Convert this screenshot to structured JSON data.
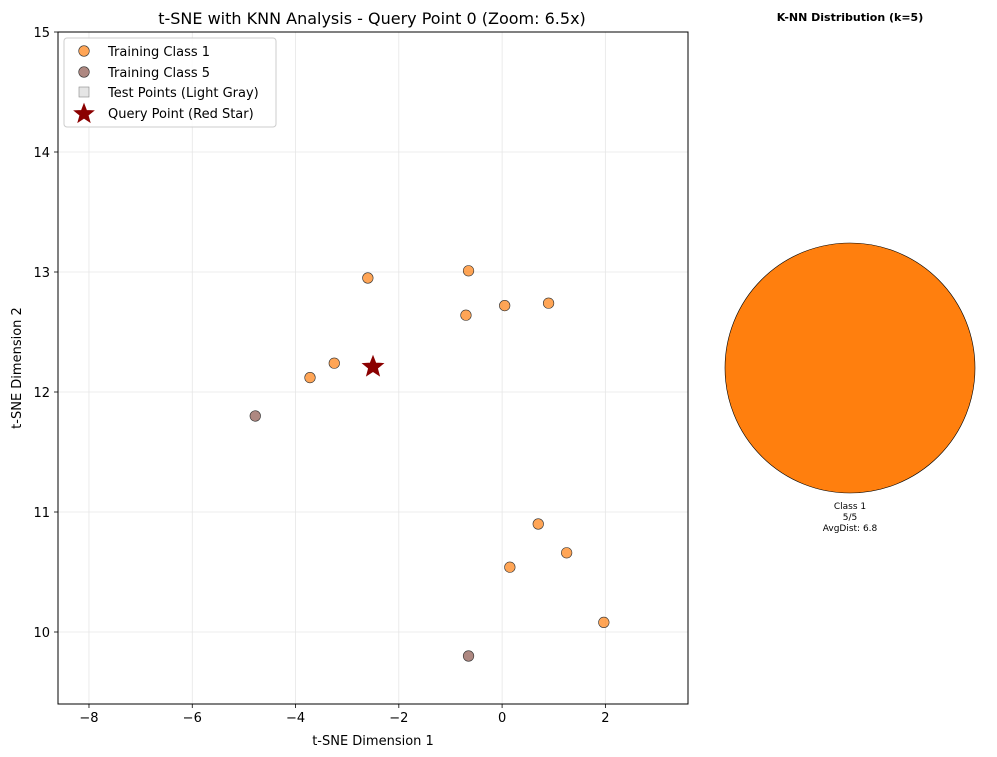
{
  "chart_data": [
    {
      "type": "scatter",
      "title": "t-SNE with KNN Analysis - Query Point 0 (Zoom: 6.5x)",
      "xlabel": "t-SNE Dimension 1",
      "ylabel": "t-SNE Dimension 2",
      "xlim": [
        -8.6,
        3.6
      ],
      "ylim": [
        9.4,
        15.0
      ],
      "xticks": [
        -8,
        -6,
        -4,
        -2,
        0,
        2
      ],
      "yticks": [
        10,
        11,
        12,
        13,
        14,
        15
      ],
      "grid": true,
      "legend_position": "upper-left",
      "series": [
        {
          "name": "Training Class 1",
          "color": "#ff7f0e",
          "marker": "circle",
          "points": [
            {
              "x": -2.6,
              "y": 12.95
            },
            {
              "x": -0.65,
              "y": 13.01
            },
            {
              "x": -0.7,
              "y": 12.64
            },
            {
              "x": 0.05,
              "y": 12.72
            },
            {
              "x": 0.9,
              "y": 12.74
            },
            {
              "x": -3.25,
              "y": 12.24
            },
            {
              "x": -3.72,
              "y": 12.12
            },
            {
              "x": 0.7,
              "y": 10.9
            },
            {
              "x": 1.25,
              "y": 10.66
            },
            {
              "x": 0.15,
              "y": 10.54
            },
            {
              "x": 1.97,
              "y": 10.08
            }
          ]
        },
        {
          "name": "Training Class 5",
          "color": "#8c564b",
          "marker": "circle",
          "points": [
            {
              "x": -4.78,
              "y": 11.8
            },
            {
              "x": -0.65,
              "y": 9.8
            }
          ]
        },
        {
          "name": "Test Points (Light Gray)",
          "color": "#d3d3d3",
          "marker": "square",
          "points": []
        },
        {
          "name": "Query Point (Red Star)",
          "color": "#8b0000",
          "marker": "star",
          "points": [
            {
              "x": -2.5,
              "y": 12.21
            }
          ]
        }
      ]
    },
    {
      "type": "pie",
      "title": "K-NN Distribution (k=5)",
      "slices": [
        {
          "label": "Class 1",
          "count_label": "5/5",
          "avg_label": "AvgDist: 6.8",
          "value": 5,
          "color": "#ff7f0e"
        }
      ]
    }
  ]
}
